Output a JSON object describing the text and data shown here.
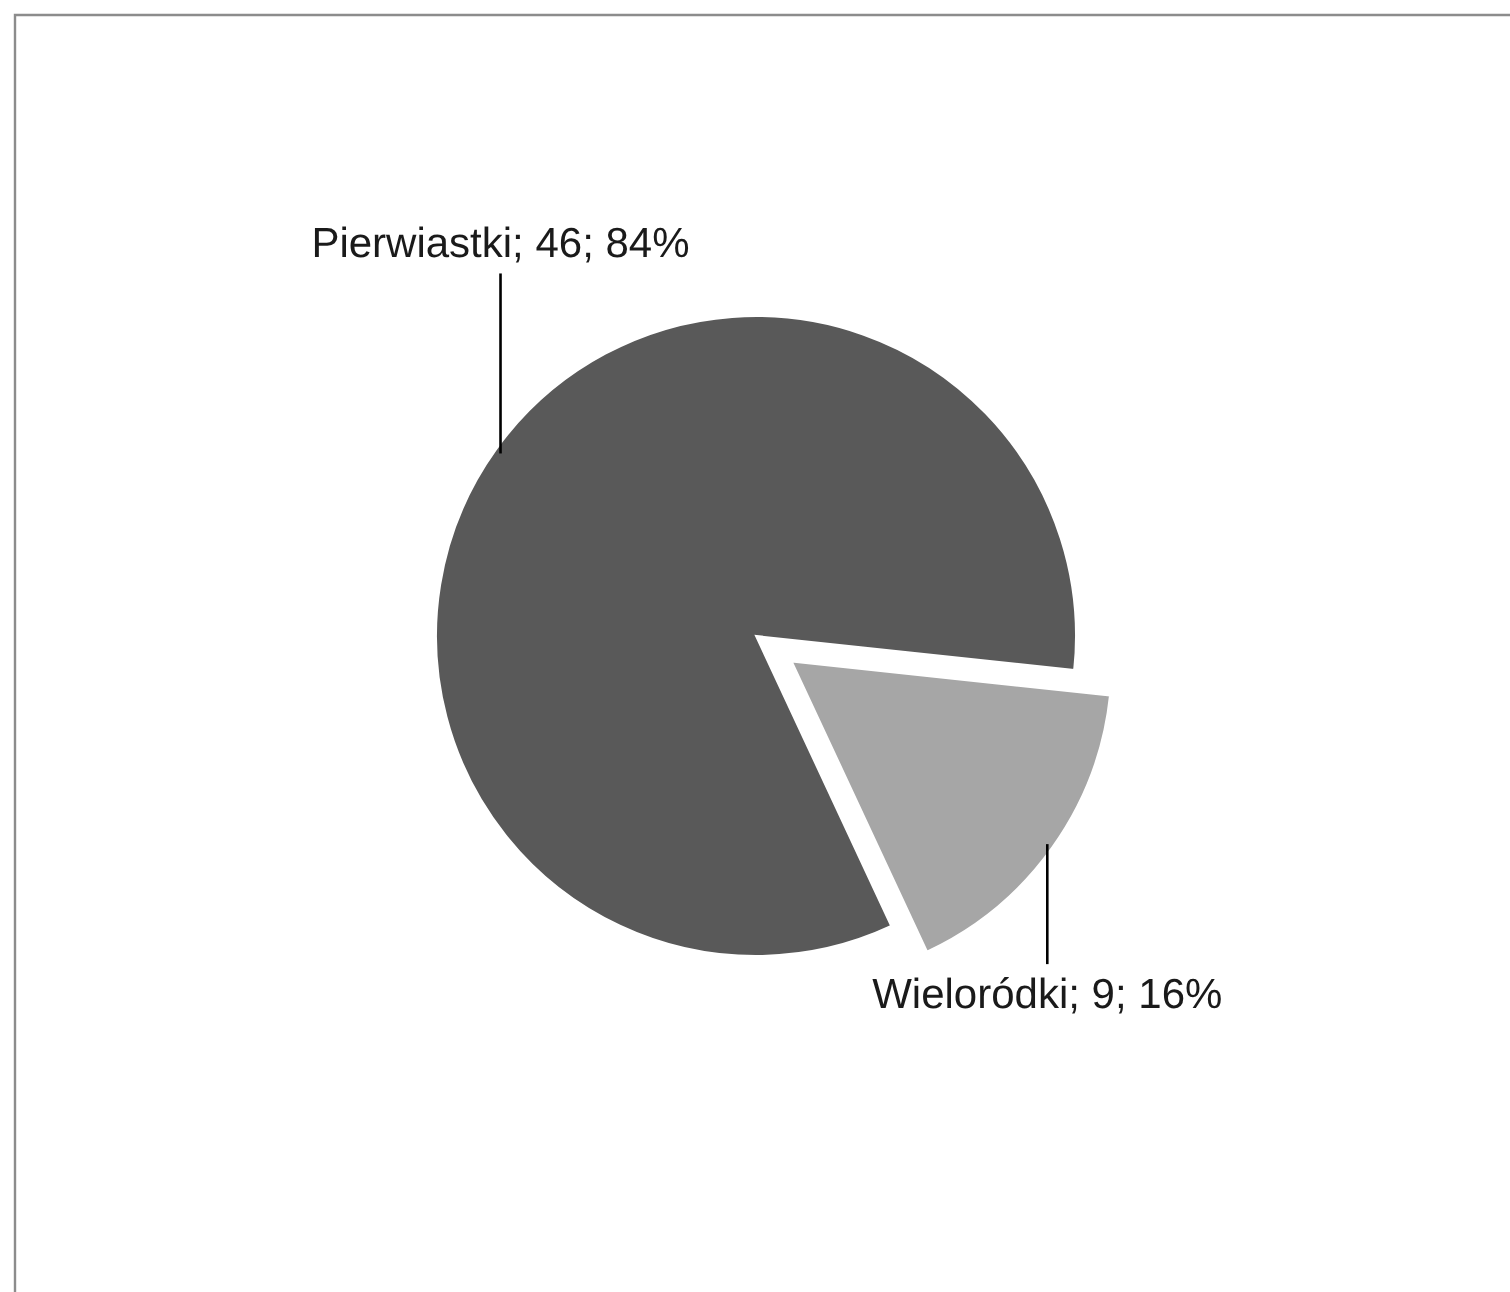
{
  "chart_data": {
    "type": "pie",
    "categories": [
      "Pierwiastki",
      "Wieloródki"
    ],
    "values": [
      46,
      9
    ],
    "colors": [
      "#595959",
      "#a6a6a6"
    ],
    "value_labels": [
      "46; 84%",
      "9; 16%"
    ]
  }
}
